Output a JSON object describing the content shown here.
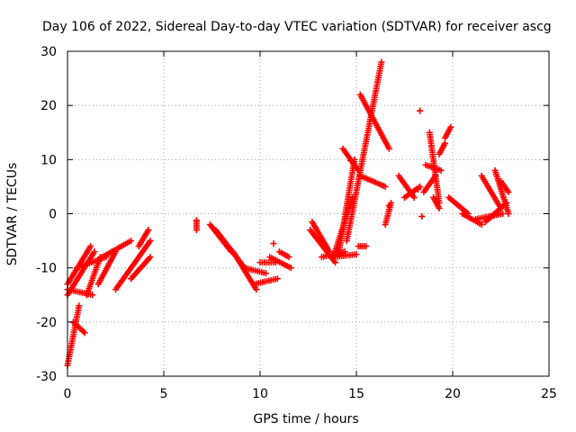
{
  "chart_data": {
    "type": "scatter",
    "title": "Day 106 of 2022, Sidereal Day-to-day VTEC variation (SDTVAR) for receiver ascg",
    "xlabel": "GPS time / hours",
    "ylabel": "SDTVAR / TECUs",
    "xlim": [
      0,
      25
    ],
    "ylim": [
      -30,
      30
    ],
    "xticks": [
      0,
      5,
      10,
      15,
      20,
      25
    ],
    "yticks": [
      -30,
      -20,
      -10,
      0,
      10,
      20,
      30
    ],
    "grid": true,
    "marker": "+",
    "color": "#ff0000",
    "tracks": [
      {
        "x0": 0.0,
        "y0": -28,
        "x1": 0.6,
        "y1": -17
      },
      {
        "x0": 0.3,
        "y0": -20,
        "x1": 0.9,
        "y1": -22
      },
      {
        "x0": 0.0,
        "y0": -13,
        "x1": 1.2,
        "y1": -6
      },
      {
        "x0": 0.0,
        "y0": -15,
        "x1": 1.4,
        "y1": -7
      },
      {
        "x0": 0.0,
        "y0": -14,
        "x1": 1.3,
        "y1": -15
      },
      {
        "x0": 0.5,
        "y0": -10,
        "x1": 2.0,
        "y1": -8
      },
      {
        "x0": 1.0,
        "y0": -15,
        "x1": 1.7,
        "y1": -8
      },
      {
        "x0": 1.6,
        "y0": -13,
        "x1": 2.5,
        "y1": -7
      },
      {
        "x0": 1.8,
        "y0": -8,
        "x1": 3.3,
        "y1": -5
      },
      {
        "x0": 2.5,
        "y0": -14,
        "x1": 4.3,
        "y1": -5
      },
      {
        "x0": 3.3,
        "y0": -12,
        "x1": 4.3,
        "y1": -8
      },
      {
        "x0": 3.7,
        "y0": -6,
        "x1": 4.2,
        "y1": -3
      },
      {
        "x0": 6.7,
        "y0": -1.5,
        "x1": 6.7,
        "y1": -3
      },
      {
        "x0": 7.4,
        "y0": -2,
        "x1": 8.5,
        "y1": -7
      },
      {
        "x0": 7.7,
        "y0": -3,
        "x1": 9.2,
        "y1": -10
      },
      {
        "x0": 8.6,
        "y0": -7,
        "x1": 9.8,
        "y1": -14
      },
      {
        "x0": 9.2,
        "y0": -10,
        "x1": 10.3,
        "y1": -11
      },
      {
        "x0": 9.7,
        "y0": -13,
        "x1": 10.9,
        "y1": -12
      },
      {
        "x0": 10.0,
        "y0": -9,
        "x1": 10.8,
        "y1": -9
      },
      {
        "x0": 10.5,
        "y0": -8,
        "x1": 11.6,
        "y1": -10
      },
      {
        "x0": 11.0,
        "y0": -7,
        "x1": 11.5,
        "y1": -8
      },
      {
        "x0": 12.6,
        "y0": -3,
        "x1": 13.9,
        "y1": -9
      },
      {
        "x0": 12.7,
        "y0": -1.5,
        "x1": 13.6,
        "y1": -7
      },
      {
        "x0": 13.2,
        "y0": -8,
        "x1": 14.4,
        "y1": -7
      },
      {
        "x0": 13.8,
        "y0": -8,
        "x1": 15.0,
        "y1": -7.5
      },
      {
        "x0": 13.8,
        "y0": -8,
        "x1": 14.8,
        "y1": 3
      },
      {
        "x0": 14.1,
        "y0": -7,
        "x1": 14.9,
        "y1": 10
      },
      {
        "x0": 14.3,
        "y0": 12,
        "x1": 15.1,
        "y1": 8
      },
      {
        "x0": 14.5,
        "y0": -5,
        "x1": 16.3,
        "y1": 28
      },
      {
        "x0": 15.2,
        "y0": 22,
        "x1": 16.7,
        "y1": 12
      },
      {
        "x0": 15.1,
        "y0": -6,
        "x1": 15.5,
        "y1": -6
      },
      {
        "x0": 15.2,
        "y0": 7,
        "x1": 16.5,
        "y1": 5
      },
      {
        "x0": 16.5,
        "y0": -2,
        "x1": 16.8,
        "y1": 2
      },
      {
        "x0": 17.2,
        "y0": 7,
        "x1": 18.0,
        "y1": 3
      },
      {
        "x0": 17.5,
        "y0": 3,
        "x1": 18.3,
        "y1": 5
      },
      {
        "x0": 18.3,
        "y0": 19,
        "x1": 18.3,
        "y1": 19
      },
      {
        "x0": 18.4,
        "y0": -0.5,
        "x1": 18.4,
        "y1": -0.5
      },
      {
        "x0": 18.5,
        "y0": 4,
        "x1": 19.1,
        "y1": 7
      },
      {
        "x0": 18.6,
        "y0": 9,
        "x1": 19.4,
        "y1": 8
      },
      {
        "x0": 18.8,
        "y0": 15,
        "x1": 19.3,
        "y1": 2
      },
      {
        "x0": 19.0,
        "y0": 3,
        "x1": 19.3,
        "y1": 1
      },
      {
        "x0": 19.3,
        "y0": 11,
        "x1": 19.6,
        "y1": 13
      },
      {
        "x0": 19.6,
        "y0": 14,
        "x1": 19.9,
        "y1": 16
      },
      {
        "x0": 19.8,
        "y0": 3,
        "x1": 20.8,
        "y1": 0
      },
      {
        "x0": 20.5,
        "y0": 0,
        "x1": 21.5,
        "y1": -2
      },
      {
        "x0": 21.2,
        "y0": -1,
        "x1": 22.6,
        "y1": 0
      },
      {
        "x0": 21.5,
        "y0": 7,
        "x1": 22.5,
        "y1": 1
      },
      {
        "x0": 21.7,
        "y0": -1.5,
        "x1": 22.8,
        "y1": 2
      },
      {
        "x0": 22.2,
        "y0": 8,
        "x1": 22.9,
        "y1": 0
      },
      {
        "x0": 22.5,
        "y0": 6,
        "x1": 22.9,
        "y1": 4
      }
    ],
    "isolated_points": [
      {
        "x": 6.7,
        "y": -1.2
      },
      {
        "x": 10.7,
        "y": -5.5
      },
      {
        "x": 14.7,
        "y": 9.8
      },
      {
        "x": 16.7,
        "y": 1.5
      },
      {
        "x": 18.2,
        "y": 4.5
      }
    ]
  }
}
